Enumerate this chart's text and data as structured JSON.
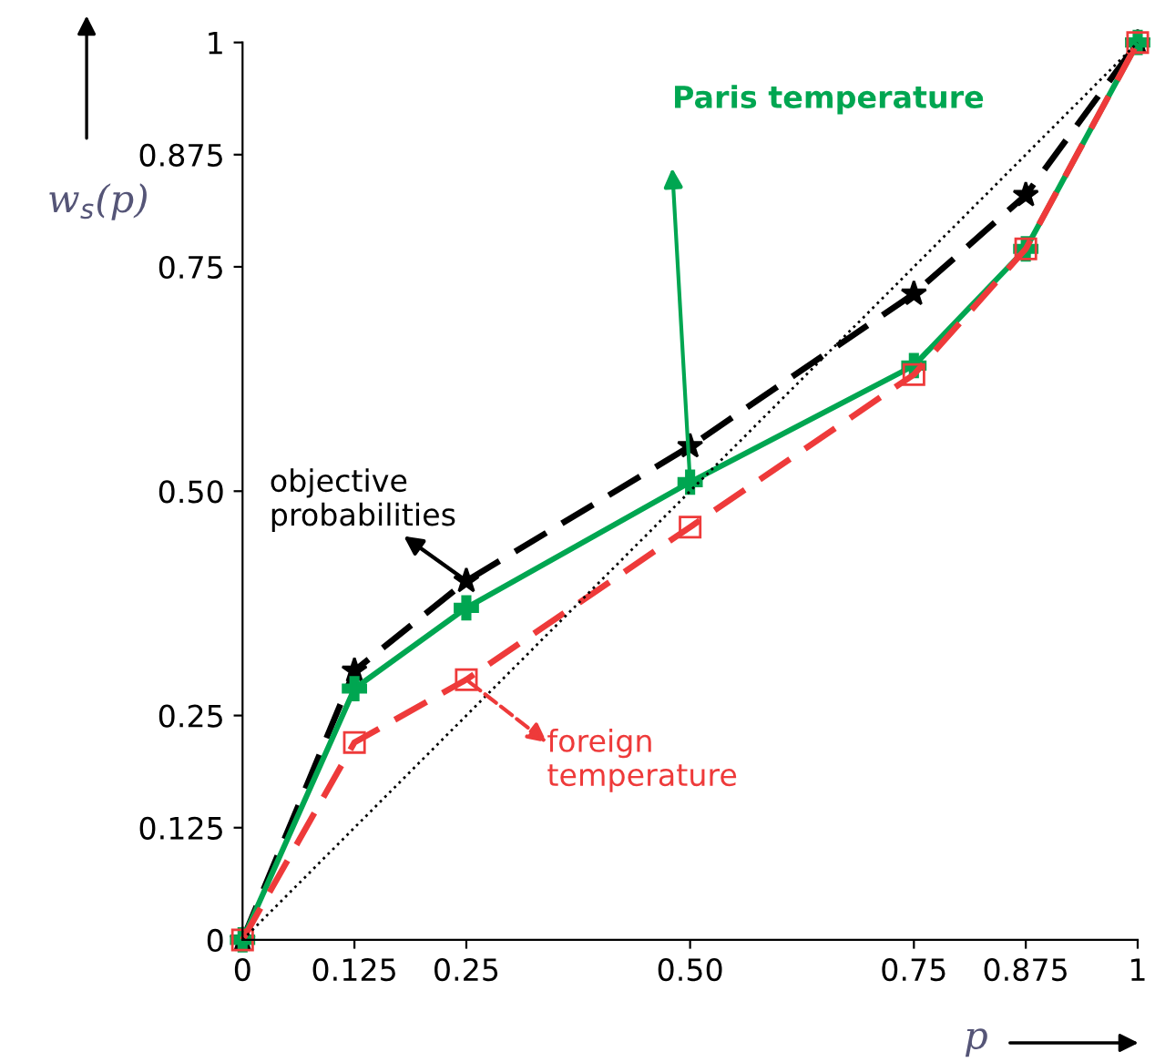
{
  "chart_data": {
    "type": "line",
    "xlabel": "p",
    "ylabel": "w$_{s}$(p)",
    "x": [
      0,
      0.125,
      0.25,
      0.5,
      0.75,
      0.875,
      1
    ],
    "series": [
      {
        "color": "#000000",
        "values": [
          0,
          0.3,
          0.4,
          0.55,
          0.72,
          0.83,
          1
        ],
        "line_style": "dashed",
        "marker": "star"
      },
      {
        "color": "#00a651",
        "values": [
          0,
          0.28,
          0.37,
          0.51,
          0.64,
          0.77,
          1
        ],
        "line_style": "solid",
        "marker": "cross"
      },
      {
        "color": "#ee3a3a",
        "values": [
          0,
          0.22,
          0.29,
          0.46,
          0.63,
          0.77,
          1
        ],
        "line_style": "dashed",
        "marker": "square"
      },
      {
        "color": "#000000",
        "x": [
          0,
          1
        ],
        "values": [
          0,
          1
        ],
        "line_style": "dotted"
      }
    ],
    "annotations": [
      {
        "text": "objective\nprobabilities",
        "x": 0.25,
        "y": 0.4
      },
      "Paris temperature",
      {
        "text": "foreign\ntemperature",
        "x": 0.25,
        "y": 0.29
      }
    ],
    "xlim": [
      0,
      1
    ],
    "ylim": [
      0,
      1
    ],
    "xticks": [
      0,
      0.125,
      0.25,
      {
        "value": 0.5,
        "label": "0.50"
      },
      0.75,
      0.875,
      1
    ],
    "yticks": [
      0,
      0.125,
      0.25,
      {
        "value": 0.5,
        "label": "0.50"
      },
      0.75,
      0.875,
      1
    ],
    "grid": false,
    "legend": false
  }
}
